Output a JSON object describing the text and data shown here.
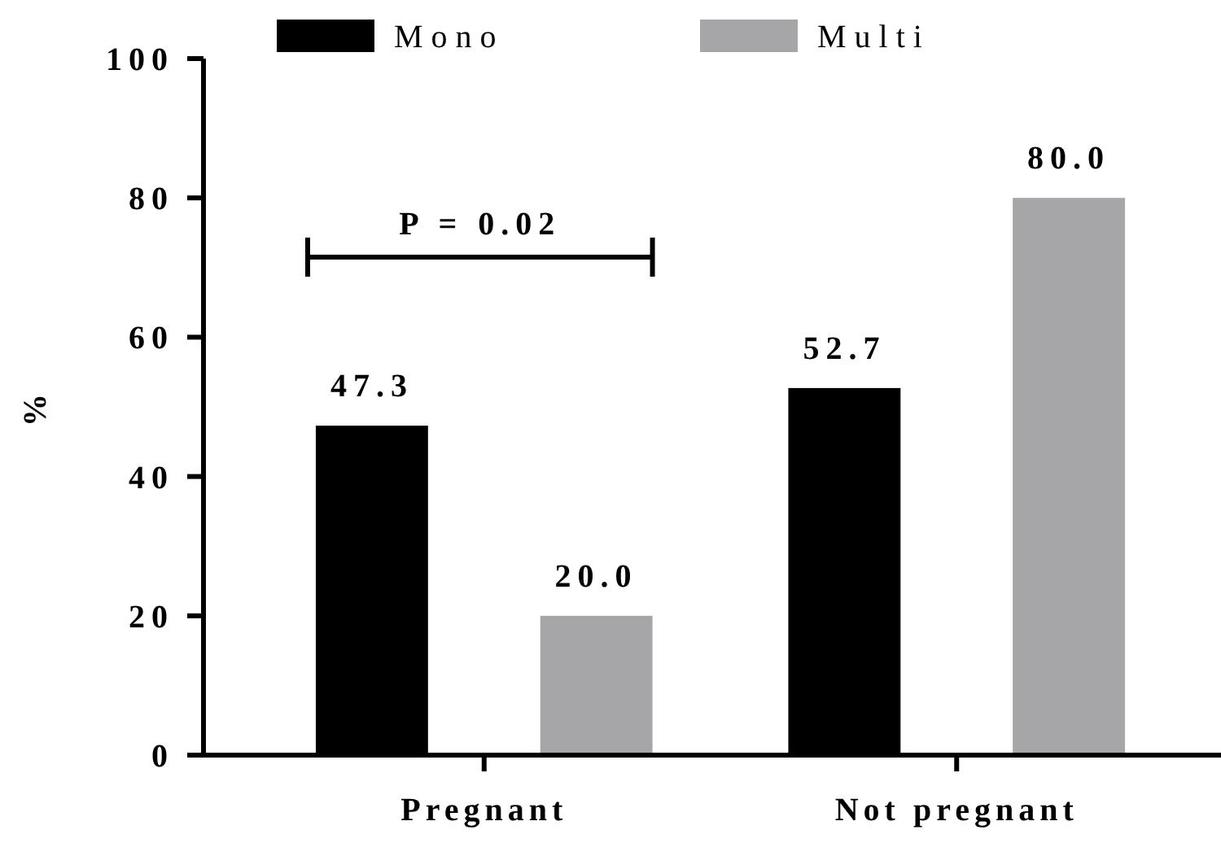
{
  "chart_data": {
    "type": "bar",
    "ylabel": "%",
    "categories": [
      "Pregnant",
      "Not pregnant"
    ],
    "series": [
      {
        "name": "Mono",
        "color": "#000000",
        "values": [
          47.3,
          52.7
        ],
        "value_labels": [
          "47.3",
          "52.7"
        ]
      },
      {
        "name": "Multi",
        "color": "#a6a6a8",
        "values": [
          20.0,
          80.0
        ],
        "value_labels": [
          "20.0",
          "80.0"
        ]
      }
    ],
    "ylim": [
      0,
      100
    ],
    "yticks": [
      0,
      20,
      40,
      60,
      80,
      100
    ],
    "legend": "top",
    "grid": false,
    "annotations": [
      "P = 0.02"
    ]
  }
}
